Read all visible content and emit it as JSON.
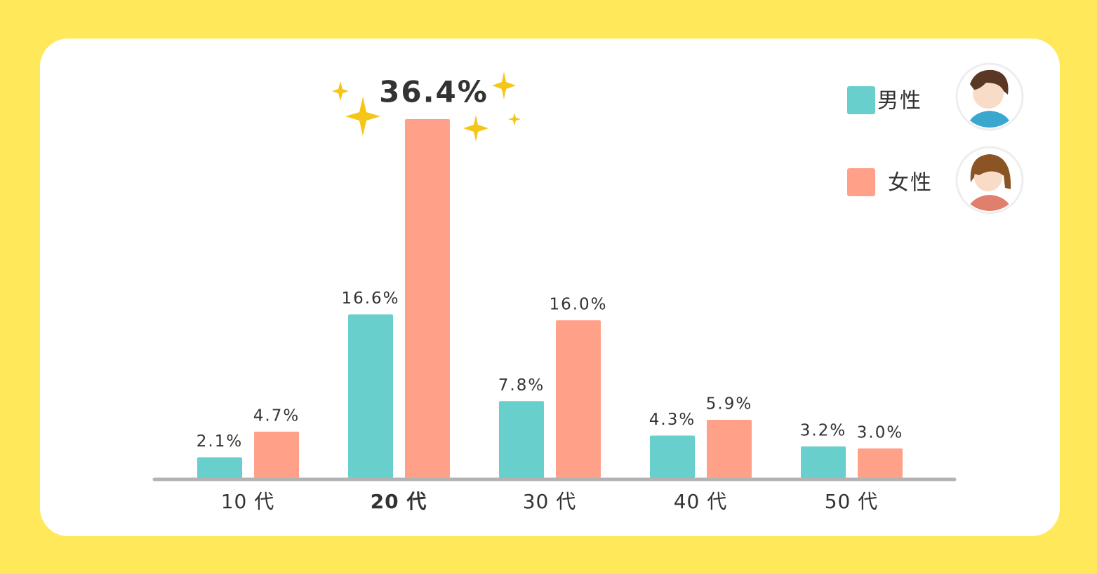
{
  "chart_data": {
    "type": "bar",
    "categories": [
      "10 代",
      "20 代",
      "30 代",
      "40 代",
      "50 代"
    ],
    "series": [
      {
        "name": "男性",
        "color": "#68cfcc",
        "values": [
          2.1,
          16.6,
          7.8,
          4.3,
          3.2
        ],
        "value_labels": [
          "2.1%",
          "16.6%",
          "7.8%",
          "4.3%",
          "3.2%"
        ]
      },
      {
        "name": "女性",
        "color": "#ffa088",
        "values": [
          4.7,
          36.4,
          16.0,
          5.9,
          3.0
        ],
        "value_labels": [
          "4.7%",
          "36.4%",
          "16.0%",
          "5.9%",
          "3.0%"
        ]
      }
    ]
  }
}
